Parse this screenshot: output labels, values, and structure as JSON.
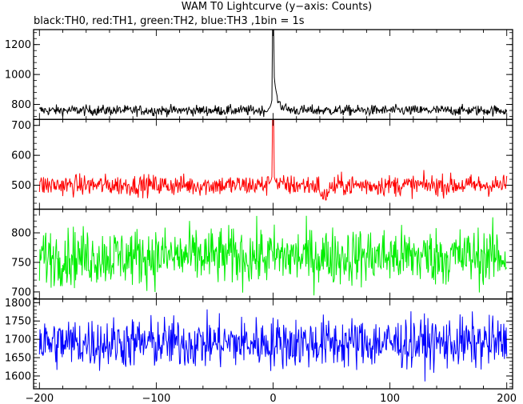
{
  "chart_data": {
    "type": "line",
    "title": "WAM T0 Lightcurve (y−axis: Counts)",
    "subtitle": "black:TH0, red:TH1, green:TH2, blue:TH3 ,1bin = 1s",
    "xlabel": "",
    "ylabel": "",
    "xlim": [
      -205,
      205
    ],
    "x_ticks": [
      -200,
      -100,
      0,
      100,
      200
    ],
    "x_tick_labels": [
      "−200",
      "−100",
      "0",
      "100",
      "200"
    ],
    "grid": false,
    "legend": "none",
    "panels": [
      {
        "name": "TH0",
        "color": "#000000",
        "ylim": [
          700,
          1300
        ],
        "y_ticks": [
          800,
          1000,
          1200
        ],
        "baseline": 760,
        "noise": 25,
        "features": [
          {
            "x": 0,
            "peak": 1300,
            "note": "spike"
          },
          {
            "x": 1,
            "peak": 950,
            "note": "decaying tail"
          }
        ]
      },
      {
        "name": "TH1",
        "color": "#ff0000",
        "ylim": [
          420,
          720
        ],
        "y_ticks": [
          500,
          600,
          700
        ],
        "baseline": 500,
        "noise": 25,
        "features": [
          {
            "x": 0,
            "peak": 720,
            "note": "spike"
          },
          {
            "x": 43,
            "peak": 450,
            "note": "dip"
          }
        ]
      },
      {
        "name": "TH2",
        "color": "#00ee00",
        "ylim": [
          688,
          840
        ],
        "y_ticks": [
          700,
          750,
          800
        ],
        "baseline": 760,
        "noise": 35,
        "features": []
      },
      {
        "name": "TH3",
        "color": "#0000ff",
        "ylim": [
          1565,
          1810
        ],
        "y_ticks": [
          1600,
          1650,
          1700,
          1750,
          1800
        ],
        "baseline": 1690,
        "noise": 50,
        "features": []
      }
    ]
  }
}
